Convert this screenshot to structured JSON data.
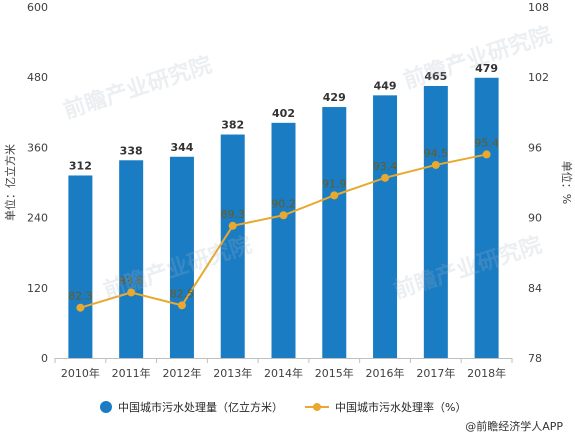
{
  "chart_data": {
    "type": "bar+line",
    "categories": [
      "2010年",
      "2011年",
      "2012年",
      "2013年",
      "2014年",
      "2015年",
      "2016年",
      "2017年",
      "2018年"
    ],
    "series": [
      {
        "name": "中国城市污水处理量（亿立方米）",
        "type": "bar",
        "axis": "left",
        "values": [
          312,
          338,
          344,
          382,
          402,
          429,
          449,
          465,
          479
        ],
        "color": "#1a7cc3"
      },
      {
        "name": "中国城市污水处理率（%）",
        "type": "line",
        "axis": "right",
        "values": [
          82.3,
          83.6,
          82.5,
          89.3,
          90.2,
          91.9,
          93.4,
          94.5,
          95.4
        ],
        "color": "#e8a92e"
      }
    ],
    "y_left": {
      "label": "单位：亿立方米",
      "ticks": [
        0,
        120,
        240,
        360,
        480,
        600
      ],
      "range": [
        0,
        600
      ]
    },
    "y_right": {
      "label": "单位：%",
      "ticks": [
        78,
        84,
        90,
        96,
        102,
        108
      ],
      "range": [
        78,
        108
      ]
    },
    "grid": false,
    "legend": "bottom"
  },
  "legend": {
    "bar": "中国城市污水处理量（亿立方米）",
    "line": "中国城市污水处理率（%）"
  },
  "source": "@前瞻经济学人APP",
  "watermark": "前瞻产业研究院"
}
